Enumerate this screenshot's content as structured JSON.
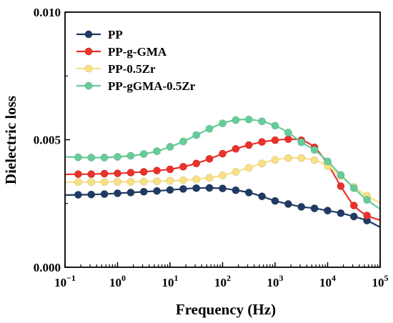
{
  "chart_data": {
    "type": "line",
    "xlabel": "Frequency (Hz)",
    "ylabel": "Dielectric loss",
    "x_scale": "log",
    "xlim": [
      0.1,
      100000
    ],
    "ylim": [
      0.0,
      0.01
    ],
    "x_ticks": [
      {
        "value": 0.1,
        "base": "10",
        "exp": "−1"
      },
      {
        "value": 1,
        "base": "10",
        "exp": "0"
      },
      {
        "value": 10,
        "base": "10",
        "exp": "1"
      },
      {
        "value": 100,
        "base": "10",
        "exp": "2"
      },
      {
        "value": 1000,
        "base": "10",
        "exp": "3"
      },
      {
        "value": 10000,
        "base": "10",
        "exp": "4"
      },
      {
        "value": 100000,
        "base": "10",
        "exp": "5"
      }
    ],
    "y_ticks": [
      {
        "value": 0.0,
        "label": "0.000"
      },
      {
        "value": 0.005,
        "label": "0.005"
      },
      {
        "value": 0.01,
        "label": "0.010"
      }
    ],
    "grid": false,
    "legend_position": "top-left",
    "series": [
      {
        "name": "PP",
        "color": "#1f3a63",
        "points": [
          [
            0.1,
            0.00283
          ],
          [
            0.178,
            0.00284
          ],
          [
            0.316,
            0.00285
          ],
          [
            0.562,
            0.00287
          ],
          [
            1,
            0.0029
          ],
          [
            1.78,
            0.00293
          ],
          [
            3.16,
            0.00296
          ],
          [
            5.62,
            0.00299
          ],
          [
            10,
            0.00303
          ],
          [
            17.8,
            0.00307
          ],
          [
            31.6,
            0.0031
          ],
          [
            56.2,
            0.00311
          ],
          [
            100,
            0.00309
          ],
          [
            178,
            0.00302
          ],
          [
            316,
            0.00293
          ],
          [
            562,
            0.00278
          ],
          [
            1000,
            0.0026
          ],
          [
            1780,
            0.00248
          ],
          [
            3160,
            0.00237
          ],
          [
            5620,
            0.00231
          ],
          [
            10000,
            0.00222
          ],
          [
            17800,
            0.00212
          ],
          [
            31600,
            0.00199
          ],
          [
            56200,
            0.00183
          ],
          [
            100000,
            0.00157
          ]
        ]
      },
      {
        "name": "PP-g-GMA",
        "color": "#e8322b",
        "points": [
          [
            0.1,
            0.00364
          ],
          [
            0.178,
            0.00365
          ],
          [
            0.316,
            0.00365
          ],
          [
            0.562,
            0.00367
          ],
          [
            1,
            0.00368
          ],
          [
            1.78,
            0.00371
          ],
          [
            3.16,
            0.00374
          ],
          [
            5.62,
            0.00379
          ],
          [
            10,
            0.00384
          ],
          [
            17.8,
            0.00394
          ],
          [
            31.6,
            0.00407
          ],
          [
            56.2,
            0.00425
          ],
          [
            100,
            0.00445
          ],
          [
            178,
            0.00464
          ],
          [
            316,
            0.00479
          ],
          [
            562,
            0.00491
          ],
          [
            1000,
            0.00498
          ],
          [
            1780,
            0.00502
          ],
          [
            3160,
            0.00498
          ],
          [
            5620,
            0.0047
          ],
          [
            10000,
            0.00405
          ],
          [
            17800,
            0.00318
          ],
          [
            31600,
            0.00242
          ],
          [
            56200,
            0.00203
          ],
          [
            100000,
            0.00185
          ]
        ]
      },
      {
        "name": "PP-0.5Zr",
        "color": "#f8e084",
        "points": [
          [
            0.1,
            0.00333
          ],
          [
            0.178,
            0.00334
          ],
          [
            0.316,
            0.00334
          ],
          [
            0.562,
            0.00334
          ],
          [
            1,
            0.00335
          ],
          [
            1.78,
            0.00335
          ],
          [
            3.16,
            0.00336
          ],
          [
            5.62,
            0.00337
          ],
          [
            10,
            0.00339
          ],
          [
            17.8,
            0.00341
          ],
          [
            31.6,
            0.00345
          ],
          [
            56.2,
            0.00351
          ],
          [
            100,
            0.0036
          ],
          [
            178,
            0.00374
          ],
          [
            316,
            0.0039
          ],
          [
            562,
            0.00407
          ],
          [
            1000,
            0.00421
          ],
          [
            1780,
            0.00428
          ],
          [
            3160,
            0.00428
          ],
          [
            5620,
            0.0042
          ],
          [
            10000,
            0.00397
          ],
          [
            17800,
            0.00358
          ],
          [
            31600,
            0.00315
          ],
          [
            56200,
            0.0028
          ],
          [
            100000,
            0.00252
          ]
        ]
      },
      {
        "name": "PP-gGMA-0.5Zr",
        "color": "#66cc99",
        "points": [
          [
            0.1,
            0.00433
          ],
          [
            0.178,
            0.00431
          ],
          [
            0.316,
            0.0043
          ],
          [
            0.562,
            0.0043
          ],
          [
            1,
            0.00433
          ],
          [
            1.78,
            0.00437
          ],
          [
            3.16,
            0.00444
          ],
          [
            5.62,
            0.00455
          ],
          [
            10,
            0.00472
          ],
          [
            17.8,
            0.00493
          ],
          [
            31.6,
            0.00518
          ],
          [
            56.2,
            0.00543
          ],
          [
            100,
            0.00564
          ],
          [
            178,
            0.00577
          ],
          [
            316,
            0.00579
          ],
          [
            562,
            0.00572
          ],
          [
            1000,
            0.00555
          ],
          [
            1780,
            0.00528
          ],
          [
            3160,
            0.0049
          ],
          [
            5620,
            0.0046
          ],
          [
            10000,
            0.00415
          ],
          [
            17800,
            0.00362
          ],
          [
            31600,
            0.0031
          ],
          [
            56200,
            0.00264
          ],
          [
            100000,
            0.00228
          ]
        ]
      }
    ]
  }
}
